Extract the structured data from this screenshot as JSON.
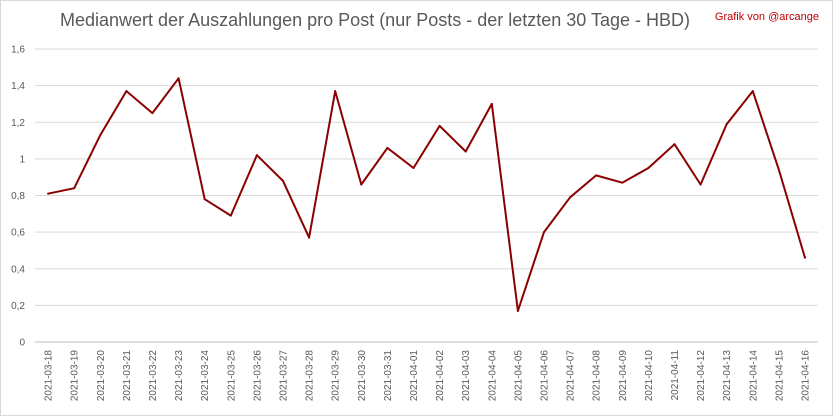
{
  "chart_data": {
    "type": "line",
    "title": "Medianwert der Auszahlungen pro Post (nur Posts - der letzten 30 Tage - HBD)",
    "credit": "Grafik von @arcange",
    "xlabel": "",
    "ylabel": "",
    "ylim": [
      0,
      1.6
    ],
    "yticks": [
      "0",
      "0,2",
      "0,4",
      "0,6",
      "0,8",
      "1",
      "1,2",
      "1,4",
      "1,6"
    ],
    "yticks_values": [
      0,
      0.2,
      0.4,
      0.6,
      0.8,
      1.0,
      1.2,
      1.4,
      1.6
    ],
    "grid": true,
    "line_color": "#8b0000",
    "categories": [
      "2021-03-18",
      "2021-03-19",
      "2021-03-20",
      "2021-03-21",
      "2021-03-22",
      "2021-03-23",
      "2021-03-24",
      "2021-03-25",
      "2021-03-26",
      "2021-03-27",
      "2021-03-28",
      "2021-03-29",
      "2021-03-30",
      "2021-03-31",
      "2021-04-01",
      "2021-04-02",
      "2021-04-03",
      "2021-04-04",
      "2021-04-05",
      "2021-04-06",
      "2021-04-07",
      "2021-04-08",
      "2021-04-09",
      "2021-04-10",
      "2021-04-11",
      "2021-04-12",
      "2021-04-13",
      "2021-04-14",
      "2021-04-15",
      "2021-04-16"
    ],
    "values": [
      0.81,
      0.84,
      1.13,
      1.37,
      1.25,
      1.44,
      0.78,
      0.69,
      1.02,
      0.88,
      0.57,
      1.37,
      0.86,
      1.06,
      0.95,
      1.18,
      1.04,
      1.3,
      0.17,
      0.6,
      0.79,
      0.91,
      0.87,
      0.95,
      1.08,
      0.86,
      1.19,
      1.37,
      0.94,
      0.46
    ]
  }
}
